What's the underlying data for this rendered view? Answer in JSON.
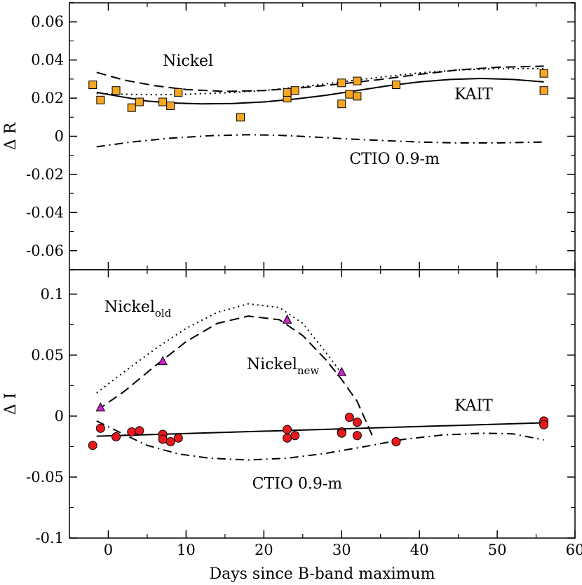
{
  "chart_data": {
    "type": "scatter",
    "x_axis": {
      "label": "Days since B-band maximum",
      "range": [
        -5,
        60
      ],
      "ticks": [
        0,
        10,
        20,
        30,
        40,
        50,
        60
      ],
      "tick_labels": [
        "0",
        "10",
        "20",
        "30",
        "40",
        "50",
        "60"
      ]
    },
    "panels": [
      {
        "id": "R",
        "ylabel": "Δ R",
        "ylim": [
          -0.07,
          0.07
        ],
        "ticks": [
          -0.06,
          -0.04,
          -0.02,
          0,
          0.02,
          0.04,
          0.06
        ],
        "tick_labels": [
          "-0.06",
          "-0.04",
          "-0.02",
          "0",
          "0.02",
          "0.04",
          "0.06"
        ],
        "series": [
          {
            "name": "KAIT",
            "style": "solid",
            "x": [
              -1.5,
              2,
              5,
              8,
              12,
              16,
              20,
              24,
              28,
              32,
              36,
              40,
              44,
              48,
              52,
              56
            ],
            "y": [
              0.023,
              0.0205,
              0.0185,
              0.0175,
              0.017,
              0.0172,
              0.018,
              0.0195,
              0.0215,
              0.024,
              0.0265,
              0.0285,
              0.0298,
              0.0303,
              0.0298,
              0.0285
            ]
          },
          {
            "name": "Nickel",
            "style": "dashed",
            "x": [
              -1.5,
              2,
              6,
              10,
              15,
              20,
              25,
              30,
              35,
              40,
              45,
              50,
              56
            ],
            "y": [
              0.0335,
              0.0295,
              0.0265,
              0.0245,
              0.0235,
              0.024,
              0.0255,
              0.0275,
              0.0298,
              0.0325,
              0.0348,
              0.0362,
              0.0368
            ]
          },
          {
            "name": "Nickel (dotted)",
            "style": "dotted",
            "x": [
              -1.5,
              2,
              6,
              10,
              15,
              20,
              25,
              30,
              35,
              40,
              45,
              50,
              56
            ],
            "y": [
              0.0225,
              0.022,
              0.0218,
              0.022,
              0.0228,
              0.024,
              0.026,
              0.0285,
              0.031,
              0.0332,
              0.0348,
              0.0355,
              0.0355
            ]
          },
          {
            "name": "CTIO 0.9-m",
            "style": "dashdot",
            "x": [
              -1.5,
              3,
              8,
              13,
              18,
              22,
              26,
              30,
              35,
              40,
              45,
              50,
              56
            ],
            "y": [
              -0.0055,
              -0.003,
              -0.001,
              0.0003,
              0.0008,
              0.0005,
              -0.0003,
              -0.0012,
              -0.0022,
              -0.003,
              -0.0035,
              -0.0035,
              -0.003
            ]
          }
        ],
        "points": {
          "marker": "square",
          "color": "#f5a623",
          "x": [
            -2,
            -1,
            1,
            3,
            4,
            7,
            8,
            9,
            17,
            23,
            23,
            24,
            30,
            30,
            31,
            32,
            32,
            37,
            56,
            56
          ],
          "y": [
            0.027,
            0.019,
            0.024,
            0.015,
            0.018,
            0.018,
            0.016,
            0.023,
            0.01,
            0.02,
            0.023,
            0.024,
            0.028,
            0.017,
            0.022,
            0.029,
            0.021,
            0.027,
            0.033,
            0.024
          ]
        },
        "annotations": [
          {
            "text": "Nickel",
            "sub": "",
            "x": 7,
            "y": 0.037
          },
          {
            "text": "KAIT",
            "sub": "",
            "x": 44.5,
            "y": 0.0195
          },
          {
            "text": "CTIO 0.9-m",
            "sub": "",
            "x": 31,
            "y": -0.0145
          }
        ]
      },
      {
        "id": "I",
        "ylabel": "Δ I",
        "ylim": [
          -0.1,
          0.12
        ],
        "ticks": [
          -0.1,
          -0.05,
          0,
          0.05,
          0.1
        ],
        "tick_labels": [
          "-0.1",
          "-0.05",
          "0",
          "0.05",
          "0.1"
        ],
        "series": [
          {
            "name": "KAIT",
            "style": "solid",
            "x": [
              -1.5,
              56
            ],
            "y": [
              -0.0165,
              -0.0055
            ]
          },
          {
            "name": "Nickel_old",
            "style": "dotted",
            "x": [
              -1.5,
              2,
              6,
              10,
              14,
              18,
              22,
              25,
              28,
              30
            ],
            "y": [
              0.019,
              0.036,
              0.055,
              0.072,
              0.085,
              0.092,
              0.089,
              0.076,
              0.052,
              0.035
            ]
          },
          {
            "name": "Nickel_new",
            "style": "dashed",
            "x": [
              -1.5,
              2,
              6,
              10,
              14,
              18,
              22,
              25,
              28,
              30,
              32,
              34
            ],
            "y": [
              0.0045,
              0.02,
              0.041,
              0.061,
              0.076,
              0.082,
              0.079,
              0.066,
              0.046,
              0.03,
              0.012,
              -0.017
            ]
          },
          {
            "name": "CTIO 0.9-m",
            "style": "dashdot",
            "x": [
              -1.5,
              2,
              5,
              9,
              13,
              18,
              23,
              28,
              33,
              38,
              43,
              48,
              52,
              56
            ],
            "y": [
              -0.004,
              -0.015,
              -0.024,
              -0.031,
              -0.0345,
              -0.036,
              -0.0345,
              -0.0305,
              -0.025,
              -0.019,
              -0.0155,
              -0.014,
              -0.0145,
              -0.0195
            ]
          }
        ],
        "points": {
          "marker": "circle",
          "color": "#e8191c",
          "x": [
            -2,
            -1,
            1,
            3,
            4,
            7,
            7,
            8,
            9,
            23,
            23,
            24,
            30,
            30,
            31,
            32,
            32,
            37,
            56,
            56
          ],
          "y": [
            -0.024,
            -0.01,
            -0.017,
            -0.013,
            -0.012,
            -0.015,
            -0.019,
            -0.021,
            -0.018,
            -0.011,
            -0.018,
            -0.016,
            -0.013,
            -0.014,
            -0.001,
            -0.005,
            -0.016,
            -0.021,
            -0.004,
            -0.007
          ]
        },
        "triangles": {
          "marker": "triangle",
          "color": "#cc22cc",
          "x": [
            -1,
            7,
            23,
            30
          ],
          "y": [
            0.007,
            0.045,
            0.079,
            0.036
          ]
        },
        "annotations": [
          {
            "text": "Nickel",
            "sub": "old",
            "x": -0.5,
            "y": 0.0855
          },
          {
            "text": "Nickel",
            "sub": "new",
            "x": 17.8,
            "y": 0.0385
          },
          {
            "text": "KAIT",
            "sub": "",
            "x": 44.5,
            "y": 0.0045
          },
          {
            "text": "CTIO 0.9-m",
            "sub": "",
            "x": 18.5,
            "y": -0.0595
          }
        ]
      }
    ]
  }
}
